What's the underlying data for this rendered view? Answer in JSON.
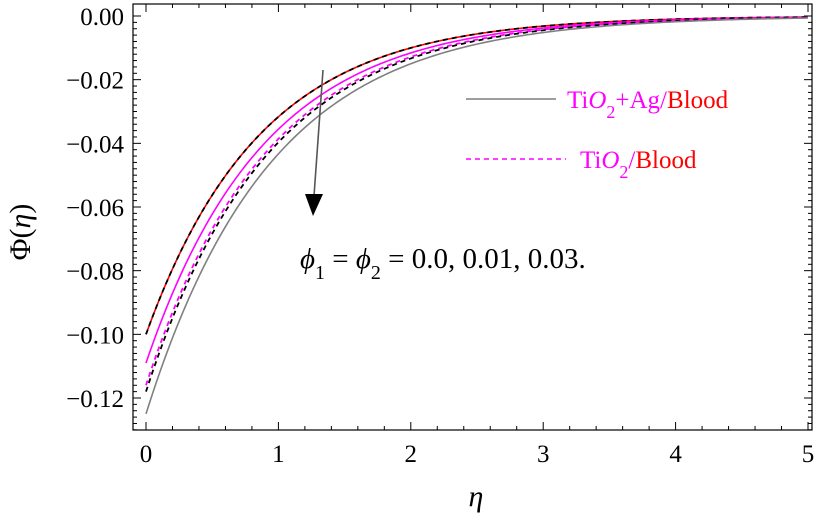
{
  "chart_data": {
    "type": "line",
    "title": "",
    "xlabel": "η",
    "ylabel": "Φ(η)",
    "xlim": [
      0,
      5
    ],
    "ylim": [
      -0.13,
      0.0
    ],
    "xticks": [
      "0",
      "1",
      "2",
      "3",
      "4",
      "5"
    ],
    "yticks": [
      "0.00",
      "−0.02",
      "−0.04",
      "−0.06",
      "−0.08",
      "−0.10",
      "−0.12"
    ],
    "grid": false,
    "legend_position": "top-right",
    "legend": [
      {
        "label": "TiO2+Ag/Blood",
        "style": "solid",
        "color": "#7f7f7f",
        "text_parts": [
          {
            "t": "Ti",
            "c": "#ff00ff"
          },
          {
            "t": "O",
            "c": "#ff00ff",
            "i": true
          },
          {
            "t": "2",
            "c": "#ff00ff",
            "sub": true
          },
          {
            "t": "+Ag/",
            "c": "#ff00ff"
          },
          {
            "t": "Blood",
            "c": "#ff0000"
          }
        ]
      },
      {
        "label": "TiO2/Blood",
        "style": "dashed",
        "color": "#ff00ff",
        "text_parts": [
          {
            "t": "Ti",
            "c": "#ff00ff"
          },
          {
            "t": "O",
            "c": "#ff00ff",
            "i": true
          },
          {
            "t": "2",
            "c": "#ff00ff",
            "sub": true
          },
          {
            "t": "/",
            "c": "#ff00ff"
          },
          {
            "t": "Blood",
            "c": "#ff0000"
          }
        ]
      }
    ],
    "annotation": "ϕ1 = ϕ2 = 0.0, 0.01, 0.03.",
    "series": [
      {
        "group": "TiO2+Ag/Blood",
        "param": "0.0",
        "color": "#ff0000",
        "dash": false,
        "initial": -0.1,
        "decay": 1.15
      },
      {
        "group": "TiO2/Blood",
        "param": "0.0",
        "color": "#000000",
        "dash": true,
        "initial": -0.1,
        "decay": 1.15
      },
      {
        "group": "TiO2+Ag/Blood",
        "param": "0.01",
        "color": "#ff00ff",
        "dash": false,
        "initial": -0.109,
        "decay": 1.12
      },
      {
        "group": "TiO2/Blood",
        "param": "0.01",
        "color": "#ff00ff",
        "dash": true,
        "initial": -0.116,
        "decay": 1.1
      },
      {
        "group": "TiO2/Blood",
        "param": "0.03",
        "color": "#000000",
        "dash": true,
        "initial": -0.118,
        "decay": 1.09
      },
      {
        "group": "TiO2+Ag/Blood",
        "param": "0.03",
        "color": "#808080",
        "dash": false,
        "initial": -0.125,
        "decay": 1.06
      }
    ]
  }
}
